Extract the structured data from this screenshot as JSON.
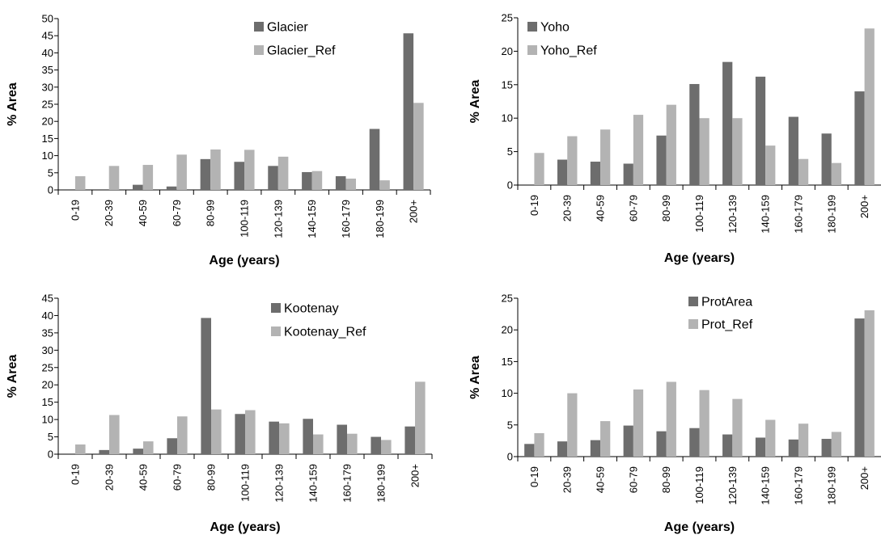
{
  "colors": {
    "primary_series": "#6d6d6d",
    "reference_series": "#b3b3b3",
    "axis": "#000000"
  },
  "chart_data": [
    {
      "type": "bar",
      "xlabel": "Age (years)",
      "ylabel": "% Area",
      "ylim": [
        0,
        50
      ],
      "yticks": [
        0,
        5,
        10,
        15,
        20,
        25,
        30,
        35,
        40,
        45,
        50
      ],
      "categories": [
        "0-19",
        "20-39",
        "40-59",
        "60-79",
        "80-99",
        "100-119",
        "120-139",
        "140-159",
        "160-179",
        "180-199",
        "200+"
      ],
      "series": [
        {
          "name": "Glacier",
          "values": [
            0,
            0,
            1.5,
            1,
            9,
            8.2,
            7,
            5.2,
            4,
            17.8,
            45.7
          ]
        },
        {
          "name": "Glacier_Ref",
          "values": [
            4,
            7,
            7.3,
            10.3,
            11.8,
            11.7,
            9.7,
            5.5,
            3.3,
            2.8,
            25.4
          ]
        }
      ],
      "legend": "top-right"
    },
    {
      "type": "bar",
      "xlabel": "Age (years)",
      "ylabel": "% Area",
      "ylim": [
        0,
        25
      ],
      "yticks": [
        0,
        5,
        10,
        15,
        20,
        25
      ],
      "categories": [
        "0-19",
        "20-39",
        "40-59",
        "60-79",
        "80-99",
        "100-119",
        "120-139",
        "140-159",
        "160-179",
        "180-199",
        "200+"
      ],
      "series": [
        {
          "name": "Yoho",
          "values": [
            0,
            3.8,
            3.5,
            3.2,
            7.4,
            15.1,
            18.4,
            16.2,
            10.2,
            7.7,
            14
          ]
        },
        {
          "name": "Yoho_Ref",
          "values": [
            4.8,
            7.3,
            8.3,
            10.5,
            12,
            10,
            10,
            5.9,
            3.9,
            3.3,
            23.4
          ]
        }
      ],
      "legend": "top-left"
    },
    {
      "type": "bar",
      "xlabel": "Age (years)",
      "ylabel": "% Area",
      "ylim": [
        0,
        45
      ],
      "yticks": [
        0,
        5,
        10,
        15,
        20,
        25,
        30,
        35,
        40,
        45
      ],
      "categories": [
        "0-19",
        "20-39",
        "40-59",
        "60-79",
        "80-99",
        "100-119",
        "120-139",
        "140-159",
        "160-179",
        "180-199",
        "200+"
      ],
      "series": [
        {
          "name": "Kootenay",
          "values": [
            0,
            1.2,
            1.6,
            4.6,
            39.3,
            11.6,
            9.4,
            10.2,
            8.5,
            5,
            8
          ]
        },
        {
          "name": "Kootenay_Ref",
          "values": [
            2.8,
            11.3,
            3.7,
            10.9,
            12.9,
            12.7,
            8.9,
            5.7,
            5.9,
            4.1,
            20.9
          ]
        }
      ],
      "legend": "top-right"
    },
    {
      "type": "bar",
      "xlabel": "Age (years)",
      "ylabel": "% Area",
      "ylim": [
        0,
        25
      ],
      "yticks": [
        0,
        5,
        10,
        15,
        20,
        25
      ],
      "categories": [
        "0-19",
        "20-39",
        "40-59",
        "60-79",
        "80-99",
        "100-119",
        "120-139",
        "140-159",
        "160-179",
        "180-199",
        "200+"
      ],
      "series": [
        {
          "name": "ProtArea",
          "values": [
            2,
            2.4,
            2.6,
            4.9,
            4,
            4.5,
            3.5,
            3,
            2.7,
            2.8,
            21.8
          ]
        },
        {
          "name": "Prot_Ref",
          "values": [
            3.7,
            10,
            5.6,
            10.6,
            11.8,
            10.5,
            9.1,
            5.8,
            5.2,
            3.9,
            23.1
          ]
        }
      ],
      "legend": "top-center"
    }
  ]
}
